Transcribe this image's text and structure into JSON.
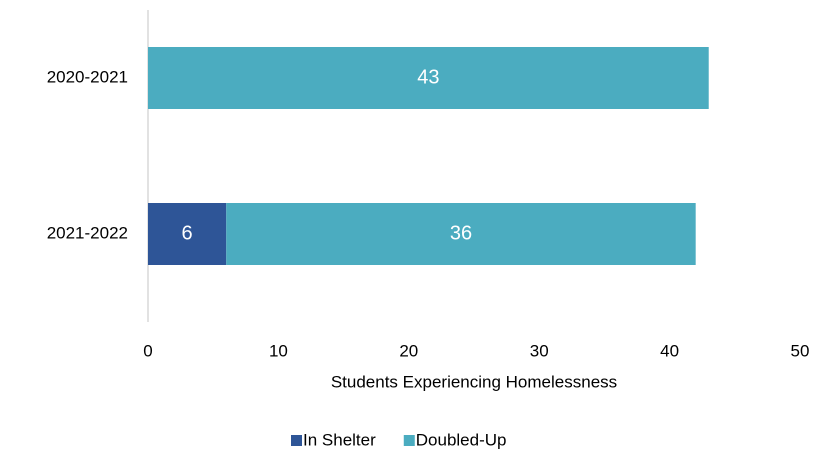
{
  "chart_data": {
    "type": "bar",
    "orientation": "horizontal",
    "stacked": true,
    "categories": [
      "2020-2021",
      "2021-2022"
    ],
    "series": [
      {
        "name": "In Shelter",
        "color": "#2e5597",
        "values": [
          null,
          6
        ]
      },
      {
        "name": "Doubled-Up",
        "color": "#4bacc0",
        "values": [
          43,
          36
        ]
      }
    ],
    "xlabel": "Students Experiencing Homelessness",
    "xlim": [
      0,
      50
    ],
    "xticks": [
      0,
      10,
      20,
      30,
      40,
      50
    ],
    "grid": false,
    "legend": "bottom"
  }
}
